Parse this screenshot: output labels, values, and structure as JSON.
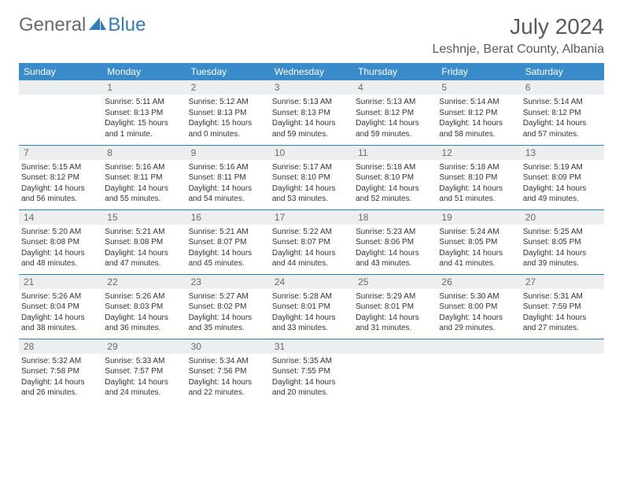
{
  "logo": {
    "part1": "General",
    "part2": "Blue"
  },
  "title": "July 2024",
  "location": "Leshnje, Berat County, Albania",
  "day_headers": [
    "Sunday",
    "Monday",
    "Tuesday",
    "Wednesday",
    "Thursday",
    "Friday",
    "Saturday"
  ],
  "colors": {
    "header_bg": "#3a8bc9",
    "daynum_bg": "#eceef0",
    "border": "#2f7bbf",
    "logo_gray": "#6a6a6a",
    "logo_blue": "#2f7bbf"
  },
  "weeks": [
    [
      {
        "n": "",
        "sr": "",
        "ss": "",
        "dl": ""
      },
      {
        "n": "1",
        "sr": "Sunrise: 5:11 AM",
        "ss": "Sunset: 8:13 PM",
        "dl": "Daylight: 15 hours and 1 minute."
      },
      {
        "n": "2",
        "sr": "Sunrise: 5:12 AM",
        "ss": "Sunset: 8:13 PM",
        "dl": "Daylight: 15 hours and 0 minutes."
      },
      {
        "n": "3",
        "sr": "Sunrise: 5:13 AM",
        "ss": "Sunset: 8:13 PM",
        "dl": "Daylight: 14 hours and 59 minutes."
      },
      {
        "n": "4",
        "sr": "Sunrise: 5:13 AM",
        "ss": "Sunset: 8:12 PM",
        "dl": "Daylight: 14 hours and 59 minutes."
      },
      {
        "n": "5",
        "sr": "Sunrise: 5:14 AM",
        "ss": "Sunset: 8:12 PM",
        "dl": "Daylight: 14 hours and 58 minutes."
      },
      {
        "n": "6",
        "sr": "Sunrise: 5:14 AM",
        "ss": "Sunset: 8:12 PM",
        "dl": "Daylight: 14 hours and 57 minutes."
      }
    ],
    [
      {
        "n": "7",
        "sr": "Sunrise: 5:15 AM",
        "ss": "Sunset: 8:12 PM",
        "dl": "Daylight: 14 hours and 56 minutes."
      },
      {
        "n": "8",
        "sr": "Sunrise: 5:16 AM",
        "ss": "Sunset: 8:11 PM",
        "dl": "Daylight: 14 hours and 55 minutes."
      },
      {
        "n": "9",
        "sr": "Sunrise: 5:16 AM",
        "ss": "Sunset: 8:11 PM",
        "dl": "Daylight: 14 hours and 54 minutes."
      },
      {
        "n": "10",
        "sr": "Sunrise: 5:17 AM",
        "ss": "Sunset: 8:10 PM",
        "dl": "Daylight: 14 hours and 53 minutes."
      },
      {
        "n": "11",
        "sr": "Sunrise: 5:18 AM",
        "ss": "Sunset: 8:10 PM",
        "dl": "Daylight: 14 hours and 52 minutes."
      },
      {
        "n": "12",
        "sr": "Sunrise: 5:18 AM",
        "ss": "Sunset: 8:10 PM",
        "dl": "Daylight: 14 hours and 51 minutes."
      },
      {
        "n": "13",
        "sr": "Sunrise: 5:19 AM",
        "ss": "Sunset: 8:09 PM",
        "dl": "Daylight: 14 hours and 49 minutes."
      }
    ],
    [
      {
        "n": "14",
        "sr": "Sunrise: 5:20 AM",
        "ss": "Sunset: 8:08 PM",
        "dl": "Daylight: 14 hours and 48 minutes."
      },
      {
        "n": "15",
        "sr": "Sunrise: 5:21 AM",
        "ss": "Sunset: 8:08 PM",
        "dl": "Daylight: 14 hours and 47 minutes."
      },
      {
        "n": "16",
        "sr": "Sunrise: 5:21 AM",
        "ss": "Sunset: 8:07 PM",
        "dl": "Daylight: 14 hours and 45 minutes."
      },
      {
        "n": "17",
        "sr": "Sunrise: 5:22 AM",
        "ss": "Sunset: 8:07 PM",
        "dl": "Daylight: 14 hours and 44 minutes."
      },
      {
        "n": "18",
        "sr": "Sunrise: 5:23 AM",
        "ss": "Sunset: 8:06 PM",
        "dl": "Daylight: 14 hours and 43 minutes."
      },
      {
        "n": "19",
        "sr": "Sunrise: 5:24 AM",
        "ss": "Sunset: 8:05 PM",
        "dl": "Daylight: 14 hours and 41 minutes."
      },
      {
        "n": "20",
        "sr": "Sunrise: 5:25 AM",
        "ss": "Sunset: 8:05 PM",
        "dl": "Daylight: 14 hours and 39 minutes."
      }
    ],
    [
      {
        "n": "21",
        "sr": "Sunrise: 5:26 AM",
        "ss": "Sunset: 8:04 PM",
        "dl": "Daylight: 14 hours and 38 minutes."
      },
      {
        "n": "22",
        "sr": "Sunrise: 5:26 AM",
        "ss": "Sunset: 8:03 PM",
        "dl": "Daylight: 14 hours and 36 minutes."
      },
      {
        "n": "23",
        "sr": "Sunrise: 5:27 AM",
        "ss": "Sunset: 8:02 PM",
        "dl": "Daylight: 14 hours and 35 minutes."
      },
      {
        "n": "24",
        "sr": "Sunrise: 5:28 AM",
        "ss": "Sunset: 8:01 PM",
        "dl": "Daylight: 14 hours and 33 minutes."
      },
      {
        "n": "25",
        "sr": "Sunrise: 5:29 AM",
        "ss": "Sunset: 8:01 PM",
        "dl": "Daylight: 14 hours and 31 minutes."
      },
      {
        "n": "26",
        "sr": "Sunrise: 5:30 AM",
        "ss": "Sunset: 8:00 PM",
        "dl": "Daylight: 14 hours and 29 minutes."
      },
      {
        "n": "27",
        "sr": "Sunrise: 5:31 AM",
        "ss": "Sunset: 7:59 PM",
        "dl": "Daylight: 14 hours and 27 minutes."
      }
    ],
    [
      {
        "n": "28",
        "sr": "Sunrise: 5:32 AM",
        "ss": "Sunset: 7:58 PM",
        "dl": "Daylight: 14 hours and 26 minutes."
      },
      {
        "n": "29",
        "sr": "Sunrise: 5:33 AM",
        "ss": "Sunset: 7:57 PM",
        "dl": "Daylight: 14 hours and 24 minutes."
      },
      {
        "n": "30",
        "sr": "Sunrise: 5:34 AM",
        "ss": "Sunset: 7:56 PM",
        "dl": "Daylight: 14 hours and 22 minutes."
      },
      {
        "n": "31",
        "sr": "Sunrise: 5:35 AM",
        "ss": "Sunset: 7:55 PM",
        "dl": "Daylight: 14 hours and 20 minutes."
      },
      {
        "n": "",
        "sr": "",
        "ss": "",
        "dl": ""
      },
      {
        "n": "",
        "sr": "",
        "ss": "",
        "dl": ""
      },
      {
        "n": "",
        "sr": "",
        "ss": "",
        "dl": ""
      }
    ]
  ]
}
